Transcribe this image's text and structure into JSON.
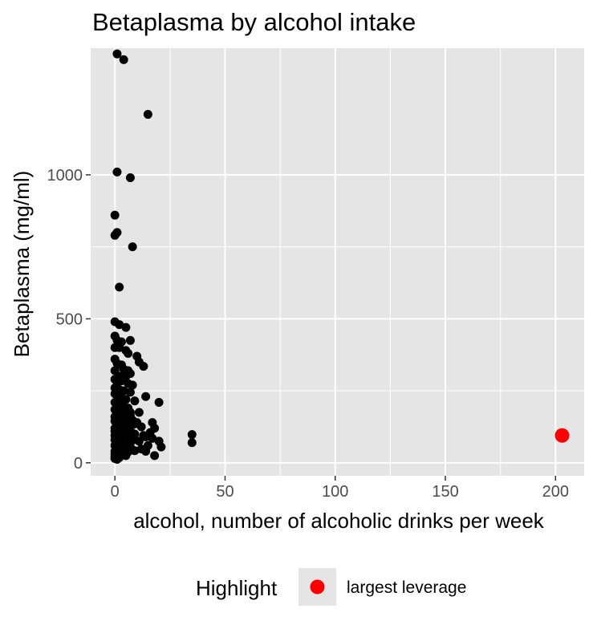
{
  "chart_data": {
    "type": "scatter",
    "title": "Betaplasma by alcohol intake",
    "xlabel": "alcohol, number of alcoholic drinks per week",
    "ylabel": "Betaplasma (mg/ml)",
    "xlim": [
      -11,
      213
    ],
    "ylim": [
      -45,
      1440
    ],
    "x_ticks": [
      0,
      50,
      100,
      150,
      200
    ],
    "y_ticks": [
      0,
      500,
      1000
    ],
    "grid": true,
    "background": "#e5e5e5",
    "grid_color": "#ffffff",
    "point_color": "#000000",
    "highlight_color": "#ff0000",
    "legend": {
      "title": "Highlight",
      "entries": [
        "largest leverage"
      ],
      "position": "bottom"
    },
    "points": [
      [
        1,
        1420
      ],
      [
        4,
        1400
      ],
      [
        15,
        1210
      ],
      [
        1,
        1010
      ],
      [
        7,
        990
      ],
      [
        0,
        860
      ],
      [
        0,
        790
      ],
      [
        1,
        800
      ],
      [
        8,
        750
      ],
      [
        2,
        610
      ],
      [
        0,
        490
      ],
      [
        2,
        480
      ],
      [
        5,
        470
      ],
      [
        0,
        440
      ],
      [
        1,
        425
      ],
      [
        3,
        420
      ],
      [
        7,
        425
      ],
      [
        0,
        400
      ],
      [
        2,
        400
      ],
      [
        5,
        390
      ],
      [
        6,
        380
      ],
      [
        10,
        370
      ],
      [
        11,
        350
      ],
      [
        13,
        335
      ],
      [
        0,
        360
      ],
      [
        1,
        345
      ],
      [
        3,
        340
      ],
      [
        4,
        325
      ],
      [
        6,
        320
      ],
      [
        0,
        320
      ],
      [
        2,
        300
      ],
      [
        5,
        300
      ],
      [
        7,
        310
      ],
      [
        0,
        290
      ],
      [
        1,
        280
      ],
      [
        3,
        285
      ],
      [
        6,
        275
      ],
      [
        8,
        270
      ],
      [
        0,
        260
      ],
      [
        2,
        255
      ],
      [
        4,
        250
      ],
      [
        7,
        245
      ],
      [
        0,
        240
      ],
      [
        1,
        235
      ],
      [
        14,
        230
      ],
      [
        3,
        225
      ],
      [
        5,
        220
      ],
      [
        9,
        215
      ],
      [
        20,
        210
      ],
      [
        0,
        210
      ],
      [
        2,
        200
      ],
      [
        4,
        195
      ],
      [
        6,
        190
      ],
      [
        0,
        185
      ],
      [
        1,
        180
      ],
      [
        3,
        175
      ],
      [
        11,
        175
      ],
      [
        5,
        170
      ],
      [
        7,
        165
      ],
      [
        0,
        160
      ],
      [
        2,
        155
      ],
      [
        4,
        150
      ],
      [
        8,
        148
      ],
      [
        0,
        145
      ],
      [
        10,
        140
      ],
      [
        17,
        140
      ],
      [
        1,
        135
      ],
      [
        3,
        130
      ],
      [
        6,
        128
      ],
      [
        12,
        125
      ],
      [
        0,
        120
      ],
      [
        2,
        118
      ],
      [
        5,
        115
      ],
      [
        7,
        112
      ],
      [
        18,
        120
      ],
      [
        0,
        110
      ],
      [
        1,
        105
      ],
      [
        3,
        100
      ],
      [
        9,
        100
      ],
      [
        35,
        98
      ],
      [
        0,
        95
      ],
      [
        4,
        92
      ],
      [
        6,
        88
      ],
      [
        14,
        90
      ],
      [
        2,
        85
      ],
      [
        17,
        85
      ],
      [
        0,
        80
      ],
      [
        8,
        78
      ],
      [
        11,
        75
      ],
      [
        20,
        75
      ],
      [
        35,
        70
      ],
      [
        1,
        70
      ],
      [
        3,
        65
      ],
      [
        5,
        62
      ],
      [
        15,
        60
      ],
      [
        0,
        60
      ],
      [
        7,
        55
      ],
      [
        21,
        55
      ],
      [
        2,
        50
      ],
      [
        12,
        48
      ],
      [
        4,
        45
      ],
      [
        9,
        42
      ],
      [
        0,
        40
      ],
      [
        14,
        40
      ],
      [
        6,
        38
      ],
      [
        1,
        35
      ],
      [
        3,
        30
      ],
      [
        0,
        30
      ],
      [
        18,
        25
      ],
      [
        5,
        25
      ],
      [
        0,
        20
      ],
      [
        2,
        18
      ],
      [
        0,
        15
      ],
      [
        1,
        12
      ],
      [
        7,
        175
      ],
      [
        9,
        135
      ],
      [
        13,
        95
      ],
      [
        16,
        105
      ],
      [
        3,
        210
      ],
      [
        5,
        145
      ]
    ],
    "highlight_points": [
      [
        203,
        95
      ]
    ]
  }
}
